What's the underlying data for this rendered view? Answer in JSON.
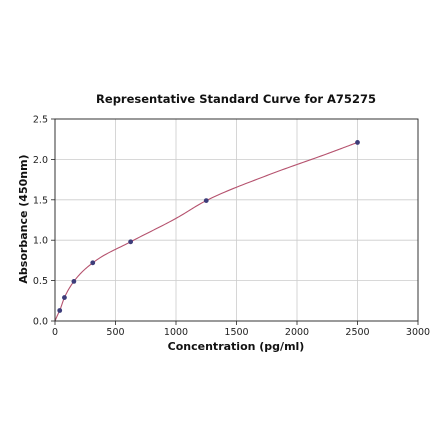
{
  "chart_data": {
    "type": "scatter",
    "title": "Representative Standard Curve for A75275",
    "xlabel": "Concentration (pg/ml)",
    "ylabel": "Absorbance (450nm)",
    "xlim": [
      0,
      3000
    ],
    "ylim": [
      0,
      2.5
    ],
    "xticks": [
      0,
      500,
      1000,
      1500,
      2000,
      2500,
      3000
    ],
    "yticks": [
      0.0,
      0.5,
      1.0,
      1.5,
      2.0,
      2.5
    ],
    "xtick_labels": [
      "0",
      "500",
      "1000",
      "1500",
      "2000",
      "2500",
      "3000"
    ],
    "ytick_labels": [
      "0.0",
      "0.5",
      "1.0",
      "1.5",
      "2.0",
      "2.5"
    ],
    "grid": true,
    "points": [
      {
        "x": 39,
        "y": 0.13
      },
      {
        "x": 78,
        "y": 0.29
      },
      {
        "x": 156,
        "y": 0.49
      },
      {
        "x": 312,
        "y": 0.72
      },
      {
        "x": 625,
        "y": 0.98
      },
      {
        "x": 1250,
        "y": 1.49
      },
      {
        "x": 2500,
        "y": 2.21
      }
    ],
    "fit_curve": {
      "x": [
        0,
        20,
        39,
        78,
        156,
        312,
        625,
        1000,
        1250,
        1750,
        2250,
        2500
      ],
      "y": [
        0.0,
        0.07,
        0.13,
        0.29,
        0.49,
        0.72,
        0.98,
        1.27,
        1.49,
        1.8,
        2.07,
        2.21
      ]
    },
    "colors": {
      "point": "#3d3d7a",
      "curve": "#b5526e",
      "grid": "#cccccc",
      "frame": "#222222"
    }
  }
}
